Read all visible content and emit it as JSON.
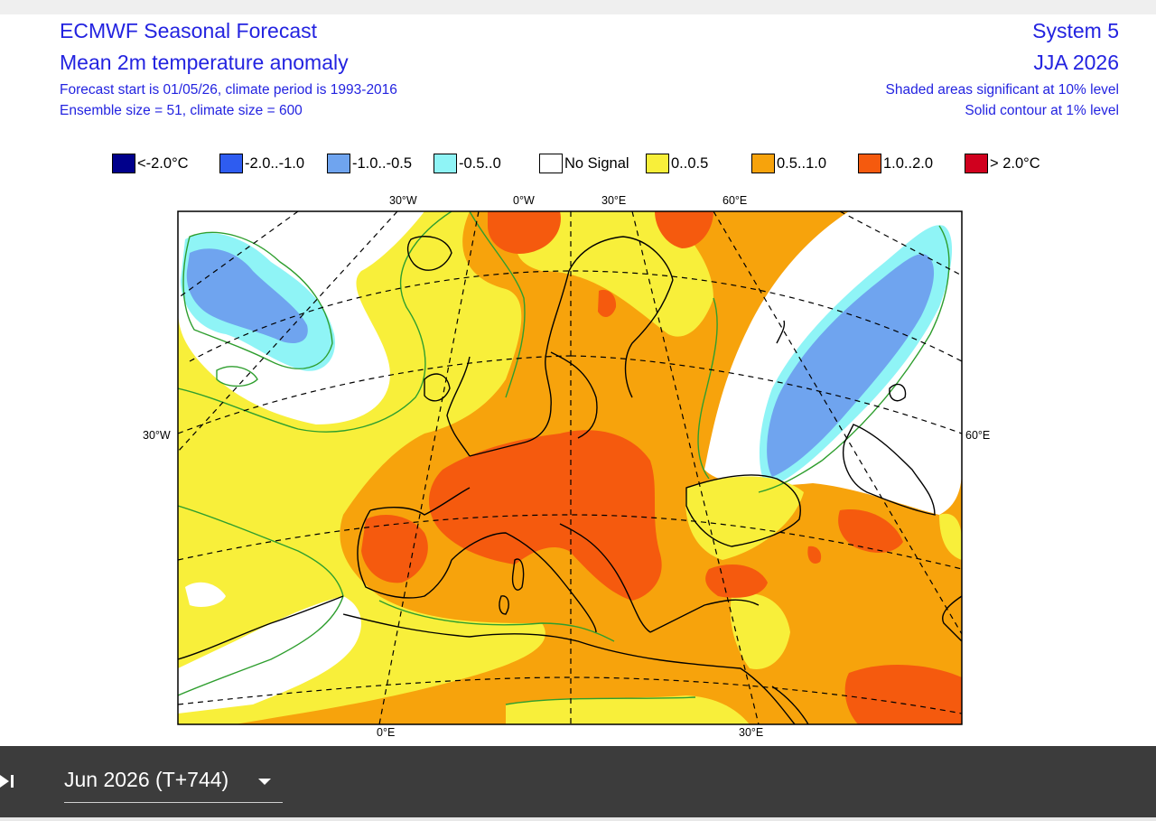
{
  "header": {
    "title": "ECMWF Seasonal Forecast",
    "subtitle": "Mean 2m temperature anomaly",
    "info_line1": "Forecast start is 01/05/26, climate period is 1993-2016",
    "info_line2": "Ensemble size = 51, climate size = 600",
    "system": "System 5",
    "season": "JJA 2026",
    "note1": "Shaded areas significant at 10% level",
    "note2": "Solid contour at 1% level"
  },
  "legend": [
    {
      "label": "<-2.0°C",
      "color": "#00008b"
    },
    {
      "label": "-2.0..-1.0",
      "color": "#2e5cf0"
    },
    {
      "label": "-1.0..-0.5",
      "color": "#6fa4ef"
    },
    {
      "label": "-0.5..0",
      "color": "#8ff4f6"
    },
    {
      "label": "No Signal",
      "color": "#ffffff"
    },
    {
      "label": "0..0.5",
      "color": "#f8ef3a"
    },
    {
      "label": "0.5..1.0",
      "color": "#f7a30c"
    },
    {
      "label": "1.0..2.0",
      "color": "#f55a0e"
    },
    {
      "label": "> 2.0°C",
      "color": "#d0001e"
    }
  ],
  "map": {
    "labels": {
      "top_30w": "30°W",
      "top_0w": "0°W",
      "top_30e": "30°E",
      "top_60e": "60°E",
      "left_30w": "30°W",
      "right_60e": "60°E",
      "bottom_0e": "0°E",
      "bottom_30e": "30°E"
    },
    "colors": {
      "yellow": "#f8ef3a",
      "orange": "#f7a30c",
      "red": "#f55a0e",
      "light_blue": "#6fa4ef",
      "cyan": "#8ff4f6",
      "white": "#ffffff",
      "contour": "#2e9e2e"
    }
  },
  "controls": {
    "skip_icon": "skip-to-end-icon",
    "period": "Jun 2026 (T+744)",
    "dropdown_icon": "chevron-down-icon"
  }
}
